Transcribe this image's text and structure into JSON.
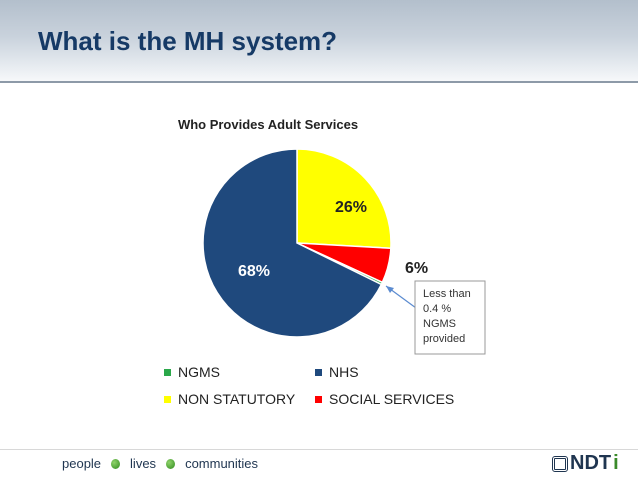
{
  "slide": {
    "title": "What is the MH system?"
  },
  "footer": {
    "words": [
      "people",
      "lives",
      "communities"
    ],
    "logo": "NDT",
    "logo_i": "i"
  },
  "chart_data": {
    "type": "pie",
    "title": "Who Provides Adult Services",
    "categories": [
      "NON STATUTORY",
      "SOCIAL SERVICES",
      "NGMS",
      "NHS"
    ],
    "values": [
      26,
      6,
      0.4,
      68
    ],
    "labels": [
      "26%",
      "6%",
      "",
      "68%"
    ],
    "colors": [
      "#ffff00",
      "#ff0000",
      "#2ba84a",
      "#1f497d"
    ],
    "legend": [
      "NGMS",
      "NHS",
      "NON STATUTORY",
      "SOCIAL SERVICES"
    ],
    "legend_colors": [
      "#2ba84a",
      "#1f497d",
      "#ffff00",
      "#ff0000"
    ],
    "legend_placement": "bottom",
    "annotation": [
      "Less than",
      "0.4 %",
      "NGMS",
      "provided"
    ]
  }
}
